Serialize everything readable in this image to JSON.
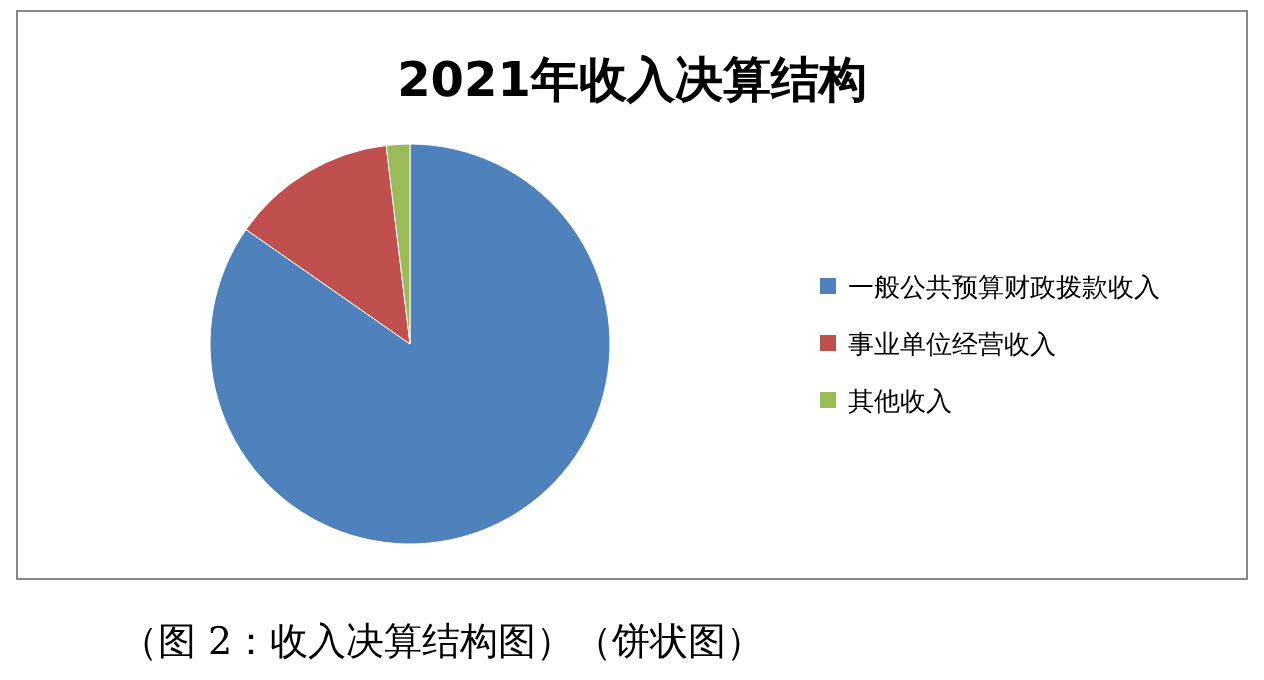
{
  "chart_data": {
    "type": "pie",
    "title": "2021年收入决算结构",
    "categories": [
      "一般公共预算财政拨款收入",
      "事业单位经营收入",
      "其他收入"
    ],
    "values": [
      84.7,
      13.4,
      1.9
    ],
    "colors": [
      "#4f81bd",
      "#c0504d",
      "#9bbb59"
    ],
    "legend": "right",
    "annotations": [
      "（图 2：收入决算结构图）（饼状图）"
    ]
  }
}
